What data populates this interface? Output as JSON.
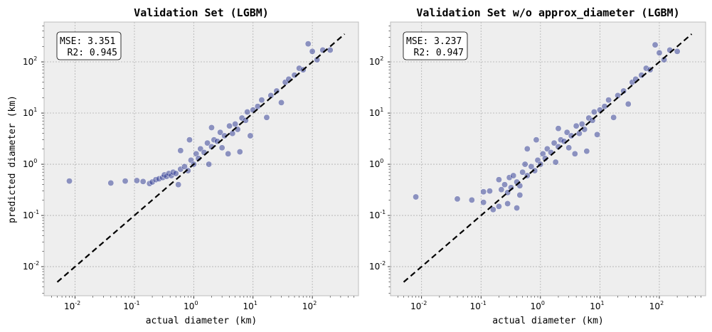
{
  "figure": {
    "ylabel": "predicted diameter (km)",
    "background": "#eeeeee",
    "point_color": "#27338f",
    "point_edge": "#ffffff",
    "line_color": "#000000"
  },
  "chart_data": [
    {
      "type": "scatter",
      "title": "Validation Set (LGBM)",
      "xlabel": "actual diameter (km)",
      "ylabel": "predicted diameter (km)",
      "x_scale": "log",
      "y_scale": "log",
      "xlim": [
        0.003,
        600
      ],
      "ylim": [
        0.0027,
        600
      ],
      "x_ticks": [
        {
          "value": 0.01,
          "base": "10",
          "exp": "-2"
        },
        {
          "value": 0.1,
          "base": "10",
          "exp": "-1"
        },
        {
          "value": 1,
          "base": "10",
          "exp": "0"
        },
        {
          "value": 10,
          "base": "10",
          "exp": "1"
        },
        {
          "value": 100,
          "base": "10",
          "exp": "2"
        }
      ],
      "y_ticks": [
        {
          "value": 0.01,
          "base": "10",
          "exp": "-2"
        },
        {
          "value": 0.1,
          "base": "10",
          "exp": "-1"
        },
        {
          "value": 1,
          "base": "10",
          "exp": "0"
        },
        {
          "value": 10,
          "base": "10",
          "exp": "1"
        },
        {
          "value": 100,
          "base": "10",
          "exp": "2"
        }
      ],
      "grid": true,
      "stats": {
        "mse": "MSE: 3.351",
        "r2": "R2: 0.945"
      },
      "reference_line": {
        "x": [
          0.005,
          350
        ],
        "y": [
          0.005,
          350
        ],
        "style": "dashed"
      },
      "points": [
        [
          0.008,
          0.47
        ],
        [
          0.04,
          0.43
        ],
        [
          0.07,
          0.47
        ],
        [
          0.11,
          0.48
        ],
        [
          0.14,
          0.46
        ],
        [
          0.18,
          0.42
        ],
        [
          0.2,
          0.45
        ],
        [
          0.23,
          0.5
        ],
        [
          0.26,
          0.52
        ],
        [
          0.3,
          0.55
        ],
        [
          0.32,
          0.62
        ],
        [
          0.35,
          0.58
        ],
        [
          0.38,
          0.66
        ],
        [
          0.42,
          0.6
        ],
        [
          0.45,
          0.7
        ],
        [
          0.5,
          0.66
        ],
        [
          0.55,
          0.4
        ],
        [
          0.6,
          0.8
        ],
        [
          0.6,
          1.85
        ],
        [
          0.7,
          0.9
        ],
        [
          0.8,
          0.75
        ],
        [
          0.85,
          3.0
        ],
        [
          0.9,
          1.2
        ],
        [
          1.0,
          1.0
        ],
        [
          1.1,
          1.6
        ],
        [
          1.2,
          1.3
        ],
        [
          1.3,
          2.0
        ],
        [
          1.5,
          1.7
        ],
        [
          1.7,
          2.6
        ],
        [
          1.8,
          1.0
        ],
        [
          2.0,
          2.2
        ],
        [
          2.0,
          5.2
        ],
        [
          2.2,
          3.0
        ],
        [
          2.5,
          2.8
        ],
        [
          2.8,
          4.2
        ],
        [
          3.0,
          2.1
        ],
        [
          3.3,
          3.6
        ],
        [
          3.8,
          1.6
        ],
        [
          4.0,
          5.6
        ],
        [
          4.5,
          4.0
        ],
        [
          5.0,
          6.1
        ],
        [
          5.5,
          4.8
        ],
        [
          6.0,
          1.75
        ],
        [
          6.5,
          8.0
        ],
        [
          7.5,
          7.2
        ],
        [
          8.0,
          10.5
        ],
        [
          9.0,
          3.6
        ],
        [
          10,
          11.5
        ],
        [
          12,
          13.5
        ],
        [
          14,
          18
        ],
        [
          17,
          8.2
        ],
        [
          20,
          22
        ],
        [
          25,
          27
        ],
        [
          30,
          16
        ],
        [
          35,
          40
        ],
        [
          40,
          46
        ],
        [
          50,
          55
        ],
        [
          60,
          75
        ],
        [
          70,
          70
        ],
        [
          85,
          225
        ],
        [
          100,
          160
        ],
        [
          120,
          110
        ],
        [
          150,
          170
        ],
        [
          200,
          170
        ]
      ]
    },
    {
      "type": "scatter",
      "title": "Validation Set w/o approx_diameter (LGBM)",
      "xlabel": "actual diameter (km)",
      "ylabel": "",
      "x_scale": "log",
      "y_scale": "log",
      "xlim": [
        0.003,
        600
      ],
      "ylim": [
        0.0027,
        600
      ],
      "x_ticks": [
        {
          "value": 0.01,
          "base": "10",
          "exp": "-2"
        },
        {
          "value": 0.1,
          "base": "10",
          "exp": "-1"
        },
        {
          "value": 1,
          "base": "10",
          "exp": "0"
        },
        {
          "value": 10,
          "base": "10",
          "exp": "1"
        },
        {
          "value": 100,
          "base": "10",
          "exp": "2"
        }
      ],
      "y_ticks": [
        {
          "value": 0.01,
          "base": "10",
          "exp": "-2"
        },
        {
          "value": 0.1,
          "base": "10",
          "exp": "-1"
        },
        {
          "value": 1,
          "base": "10",
          "exp": "0"
        },
        {
          "value": 10,
          "base": "10",
          "exp": "1"
        },
        {
          "value": 100,
          "base": "10",
          "exp": "2"
        }
      ],
      "grid": true,
      "stats": {
        "mse": "MSE: 3.237",
        "r2": "R2: 0.947"
      },
      "reference_line": {
        "x": [
          0.005,
          350
        ],
        "y": [
          0.005,
          350
        ],
        "style": "dashed"
      },
      "points": [
        [
          0.008,
          0.23
        ],
        [
          0.04,
          0.21
        ],
        [
          0.07,
          0.2
        ],
        [
          0.11,
          0.29
        ],
        [
          0.11,
          0.18
        ],
        [
          0.14,
          0.3
        ],
        [
          0.16,
          0.13
        ],
        [
          0.2,
          0.5
        ],
        [
          0.2,
          0.15
        ],
        [
          0.22,
          0.32
        ],
        [
          0.25,
          0.4
        ],
        [
          0.28,
          0.28
        ],
        [
          0.28,
          0.17
        ],
        [
          0.3,
          0.55
        ],
        [
          0.32,
          0.35
        ],
        [
          0.35,
          0.6
        ],
        [
          0.4,
          0.45
        ],
        [
          0.4,
          0.14
        ],
        [
          0.45,
          0.38
        ],
        [
          0.45,
          0.25
        ],
        [
          0.5,
          0.7
        ],
        [
          0.55,
          1.0
        ],
        [
          0.6,
          2.0
        ],
        [
          0.6,
          0.6
        ],
        [
          0.7,
          0.9
        ],
        [
          0.8,
          0.75
        ],
        [
          0.85,
          3.0
        ],
        [
          0.9,
          1.2
        ],
        [
          1.0,
          1.0
        ],
        [
          1.1,
          1.6
        ],
        [
          1.2,
          1.3
        ],
        [
          1.3,
          2.0
        ],
        [
          1.5,
          1.7
        ],
        [
          1.7,
          2.6
        ],
        [
          1.8,
          1.1
        ],
        [
          2.0,
          2.2
        ],
        [
          2.0,
          5.0
        ],
        [
          2.2,
          3.0
        ],
        [
          2.5,
          2.8
        ],
        [
          2.8,
          4.2
        ],
        [
          3.0,
          2.1
        ],
        [
          3.3,
          3.6
        ],
        [
          3.8,
          1.6
        ],
        [
          4.0,
          5.6
        ],
        [
          4.5,
          4.0
        ],
        [
          5.0,
          6.1
        ],
        [
          5.5,
          4.8
        ],
        [
          6.0,
          1.8
        ],
        [
          6.5,
          8.0
        ],
        [
          7.5,
          7.2
        ],
        [
          8.0,
          10.5
        ],
        [
          9.0,
          3.8
        ],
        [
          10,
          11.5
        ],
        [
          12,
          13.5
        ],
        [
          14,
          18
        ],
        [
          17,
          8.2
        ],
        [
          20,
          22
        ],
        [
          25,
          27
        ],
        [
          30,
          15
        ],
        [
          35,
          40
        ],
        [
          40,
          46
        ],
        [
          50,
          55
        ],
        [
          60,
          75
        ],
        [
          70,
          70
        ],
        [
          85,
          215
        ],
        [
          100,
          150
        ],
        [
          120,
          110
        ],
        [
          150,
          170
        ],
        [
          200,
          160
        ]
      ]
    }
  ]
}
